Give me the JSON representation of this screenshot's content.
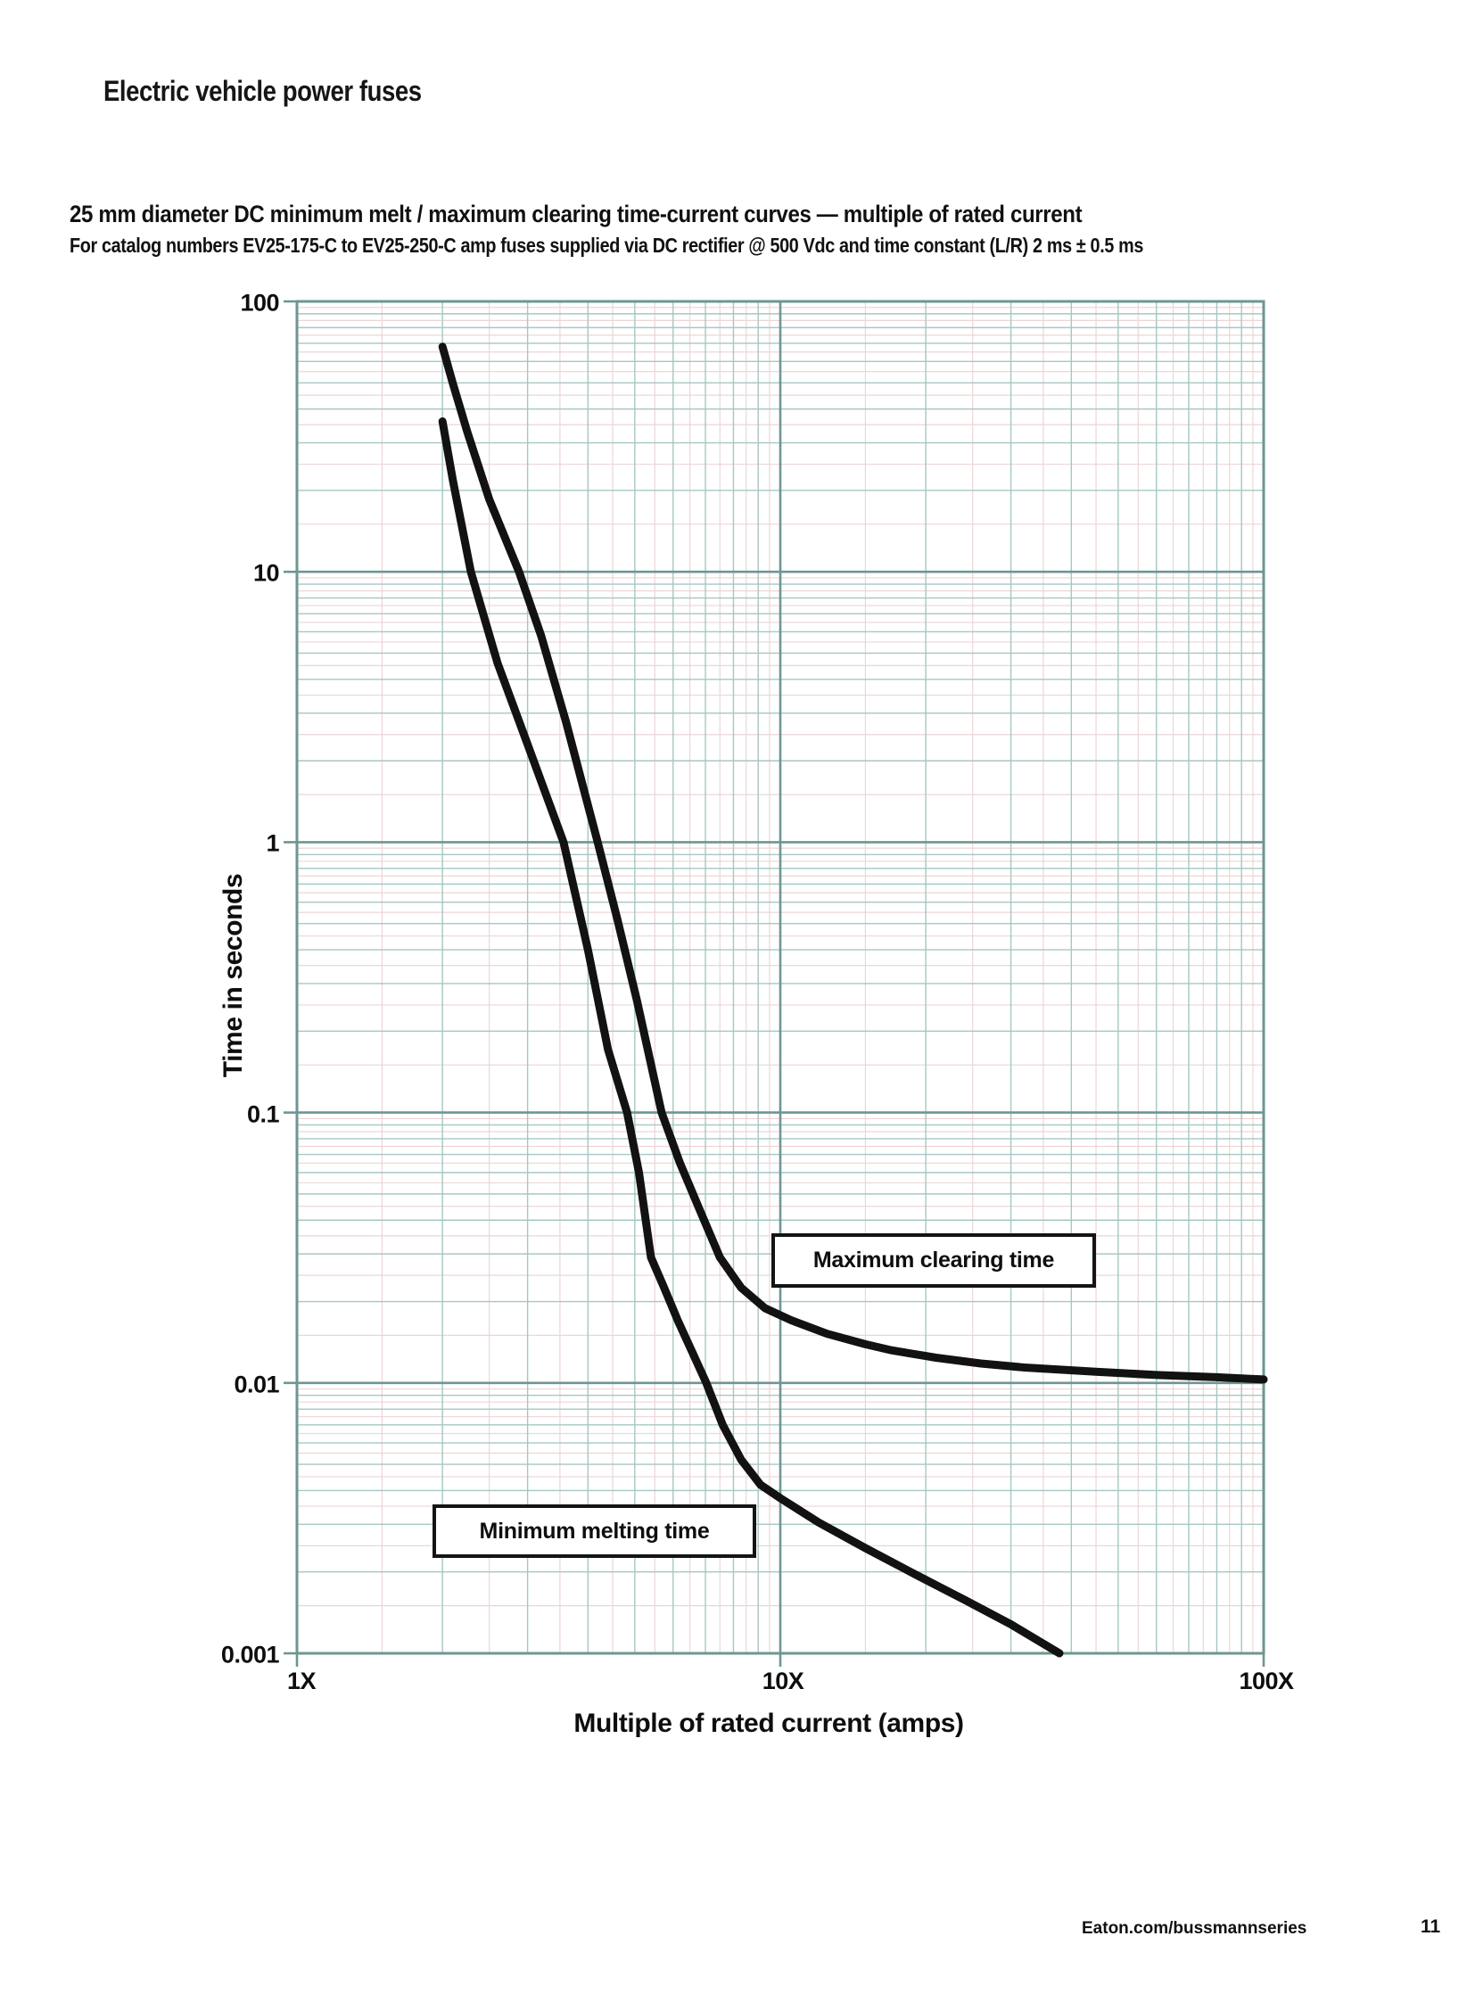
{
  "page": {
    "header": "Electric vehicle power fuses",
    "footer": {
      "link": "Eaton.com/bussmannseries",
      "page_number": "11"
    }
  },
  "chart": {
    "title": "25 mm diameter DC minimum melt / maximum clearing time-current curves — multiple of rated current",
    "subtitle": "For catalog numbers EV25-175-C to EV25-250-C amp fuses supplied via DC rectifier @ 500 Vdc and time constant (L/R) 2 ms ± 0.5 ms"
  },
  "chart_data": {
    "type": "line",
    "title": "25 mm diameter DC minimum melt / maximum clearing time-current curves — multiple of rated current",
    "xlabel": "Multiple of rated current (amps)",
    "ylabel": "Time in seconds",
    "x_scale": "log",
    "y_scale": "log",
    "xlim": [
      1,
      100
    ],
    "ylim": [
      0.001,
      100
    ],
    "grid": "log major + minor + half-step sub-minor",
    "legend_position": "annotation boxes inside plot",
    "x_ticks": [
      {
        "value": 1,
        "label": "1X"
      },
      {
        "value": 10,
        "label": "10X"
      },
      {
        "value": 100,
        "label": "100X"
      }
    ],
    "y_ticks": [
      {
        "value": 100,
        "label": "100"
      },
      {
        "value": 10,
        "label": "10"
      },
      {
        "value": 1,
        "label": "1"
      },
      {
        "value": 0.1,
        "label": "0.1"
      },
      {
        "value": 0.01,
        "label": "0.01"
      },
      {
        "value": 0.001,
        "label": "0.001"
      }
    ],
    "colors": {
      "curve": "#121212",
      "grid_major": "#6e9692",
      "grid_minor": "#a6c7c4",
      "grid_subminor": "#ecd6d6",
      "background": "#ffffff"
    },
    "series": [
      {
        "name": "Maximum clearing time",
        "points": [
          [
            2.0,
            68
          ],
          [
            2.1,
            50
          ],
          [
            2.25,
            33
          ],
          [
            2.5,
            18.5
          ],
          [
            2.88,
            10
          ],
          [
            3.2,
            5.8
          ],
          [
            3.6,
            2.8
          ],
          [
            4.19,
            1.0
          ],
          [
            4.6,
            0.52
          ],
          [
            5.05,
            0.26
          ],
          [
            5.68,
            0.1
          ],
          [
            6.2,
            0.065
          ],
          [
            6.8,
            0.044
          ],
          [
            7.5,
            0.0291
          ],
          [
            8.3,
            0.0225
          ],
          [
            9.3,
            0.0189
          ],
          [
            10.5,
            0.0171
          ],
          [
            12.5,
            0.0152
          ],
          [
            15,
            0.0139
          ],
          [
            17,
            0.0132
          ],
          [
            21,
            0.0124
          ],
          [
            26,
            0.0118
          ],
          [
            32,
            0.0114
          ],
          [
            45,
            0.011
          ],
          [
            60,
            0.0107
          ],
          [
            80,
            0.0105
          ],
          [
            100,
            0.0103
          ]
        ]
      },
      {
        "name": "Minimum melting time",
        "points": [
          [
            2.0,
            36
          ],
          [
            2.1,
            22
          ],
          [
            2.29,
            10
          ],
          [
            2.6,
            4.6
          ],
          [
            3.0,
            2.3
          ],
          [
            3.56,
            1.0
          ],
          [
            4.0,
            0.4
          ],
          [
            4.4,
            0.171
          ],
          [
            4.82,
            0.1
          ],
          [
            5.1,
            0.06
          ],
          [
            5.4,
            0.0291
          ],
          [
            5.75,
            0.0225
          ],
          [
            6.13,
            0.0171
          ],
          [
            6.6,
            0.0128
          ],
          [
            7.03,
            0.01
          ],
          [
            7.6,
            0.007
          ],
          [
            8.3,
            0.0052
          ],
          [
            9.1,
            0.0042
          ],
          [
            10.0,
            0.00375
          ],
          [
            12,
            0.00305
          ],
          [
            15,
            0.00245
          ],
          [
            19,
            0.00196
          ],
          [
            24,
            0.00158
          ],
          [
            30,
            0.00128
          ],
          [
            37.8,
            0.001
          ]
        ]
      }
    ]
  }
}
